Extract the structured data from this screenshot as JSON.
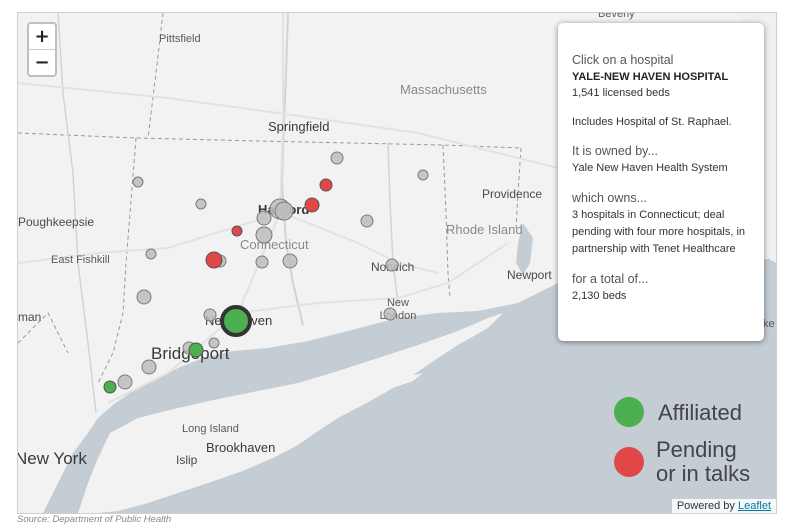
{
  "map": {
    "zoom_in": "+",
    "zoom_out": "−",
    "places": {
      "beverly": "Beverly",
      "pittsfield": "Pittsfield",
      "massachusetts": "Massachusetts",
      "springfield": "Springfield",
      "providence": "Providence",
      "poughkeepsie": "Poughkeepsie",
      "hartford": "Hartford",
      "connecticut": "Connecticut",
      "rhode_island": "Rhode Island",
      "east_fishkill": "East Fishkill",
      "norwich": "Norwich",
      "newport": "Newport",
      "new_london": "New London",
      "new_haven": "New Haven",
      "bridgeport": "Bridgeport",
      "man": "man",
      "long_island": "Long Island",
      "brookhaven": "Brookhaven",
      "islip": "Islip",
      "new_york": "New York",
      "edge_right": "ke"
    }
  },
  "info": {
    "click_prompt": "Click on a hospital",
    "hospital_name": "YALE-NEW HAVEN HOSPITAL",
    "beds": "1,541 licensed beds",
    "note": "Includes Hospital of St. Raphael.",
    "owned_heading": "It is owned by...",
    "owner": "Yale New Haven Health System",
    "owns_heading": "which owns...",
    "owns_text": "3 hospitals in Connecticut; deal pending with four more hospitals, in partnership with Tenet Healthcare",
    "total_heading": "for a total of...",
    "total": "2,130 beds"
  },
  "legend": {
    "affiliated": "Affiliated",
    "pending_line1": "Pending",
    "pending_line2": "or in talks",
    "affiliated_color": "#4caf50",
    "pending_color": "#e04848"
  },
  "attribution": {
    "prefix": "Powered by",
    "link": "Leaflet"
  },
  "source": "Source: Department of Public Health"
}
